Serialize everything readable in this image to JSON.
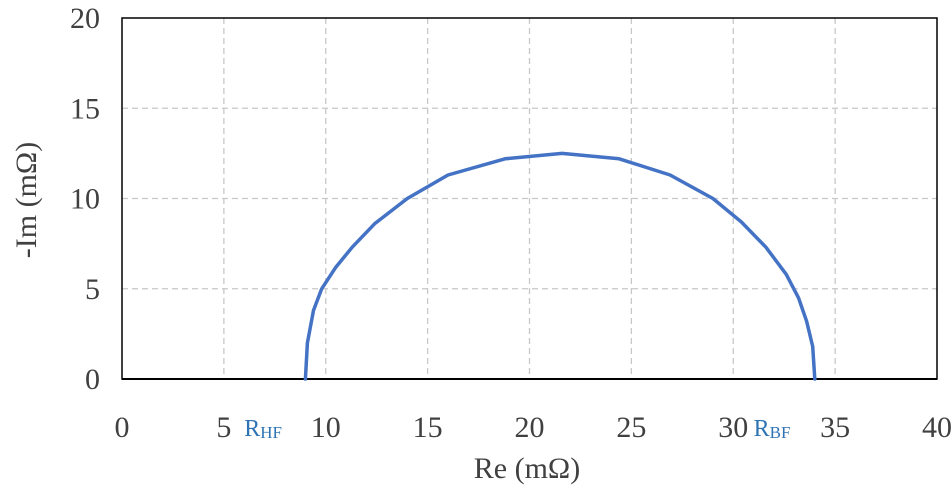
{
  "chart_data": {
    "type": "line",
    "title": "",
    "xlabel": "Re (mΩ)",
    "ylabel": "-Im (mΩ)",
    "xlim": [
      0,
      40
    ],
    "ylim": [
      0,
      20
    ],
    "x_ticks": [
      0,
      5,
      10,
      15,
      20,
      25,
      30,
      35,
      40
    ],
    "y_ticks": [
      0,
      5,
      10,
      15,
      20
    ],
    "grid": "dashed",
    "legend": "none",
    "series": [
      {
        "color": "#4472C4",
        "x": [
          9.0,
          9.1,
          9.4,
          9.8,
          10.5,
          11.3,
          12.4,
          14.0,
          16.0,
          18.8,
          21.6,
          24.4,
          26.9,
          29.0,
          30.4,
          31.6,
          32.6,
          33.2,
          33.6,
          33.9,
          34.0
        ],
        "y": [
          0.0,
          2.0,
          3.8,
          5.0,
          6.2,
          7.3,
          8.6,
          10.0,
          11.3,
          12.2,
          12.5,
          12.2,
          11.3,
          10.0,
          8.7,
          7.3,
          5.8,
          4.5,
          3.2,
          1.8,
          0.0
        ]
      }
    ],
    "annotations": [
      {
        "main": "R",
        "sub": "HF",
        "color": "#2E74B5",
        "x": 6.0,
        "y": -1.5
      },
      {
        "main": "R",
        "sub": "BF",
        "color": "#2E74B5",
        "x": 31.0,
        "y": -1.5
      }
    ]
  },
  "colors": {
    "axis": "#000000",
    "grid": "#C8C8C8",
    "text": "#404040"
  }
}
